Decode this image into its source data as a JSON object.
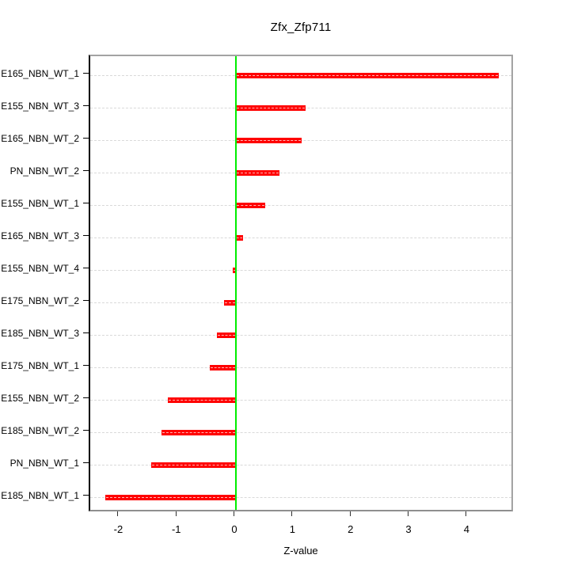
{
  "chart_data": {
    "type": "bar",
    "orientation": "horizontal",
    "title": "Zfx_Zfp711",
    "xlabel": "Z-value",
    "ylabel": "",
    "categories": [
      "E165_NBN_WT_1",
      "E155_NBN_WT_3",
      "E165_NBN_WT_2",
      "PN_NBN_WT_2",
      "E155_NBN_WT_1",
      "E165_NBN_WT_3",
      "E155_NBN_WT_4",
      "E175_NBN_WT_2",
      "E185_NBN_WT_3",
      "E175_NBN_WT_1",
      "E155_NBN_WT_2",
      "E185_NBN_WT_2",
      "PN_NBN_WT_1",
      "E185_NBN_WT_1"
    ],
    "values": [
      4.53,
      1.2,
      1.13,
      0.75,
      0.5,
      0.12,
      -0.05,
      -0.2,
      -0.33,
      -0.45,
      -1.17,
      -1.28,
      -1.46,
      -2.25
    ],
    "xticks": [
      -2,
      -1,
      0,
      1,
      2,
      3,
      4
    ],
    "xlim": [
      -2.51,
      4.8
    ],
    "grid": true,
    "grid_style": "dashed",
    "legend_position": "none",
    "colors": {
      "bar": "#ff0000",
      "bar_center_dash": "#ffffff",
      "zero_line": "#00ee00",
      "grid": "#d9d9d9",
      "box": "#a3a3a3",
      "axis": "#000000",
      "text": "#000000"
    }
  }
}
